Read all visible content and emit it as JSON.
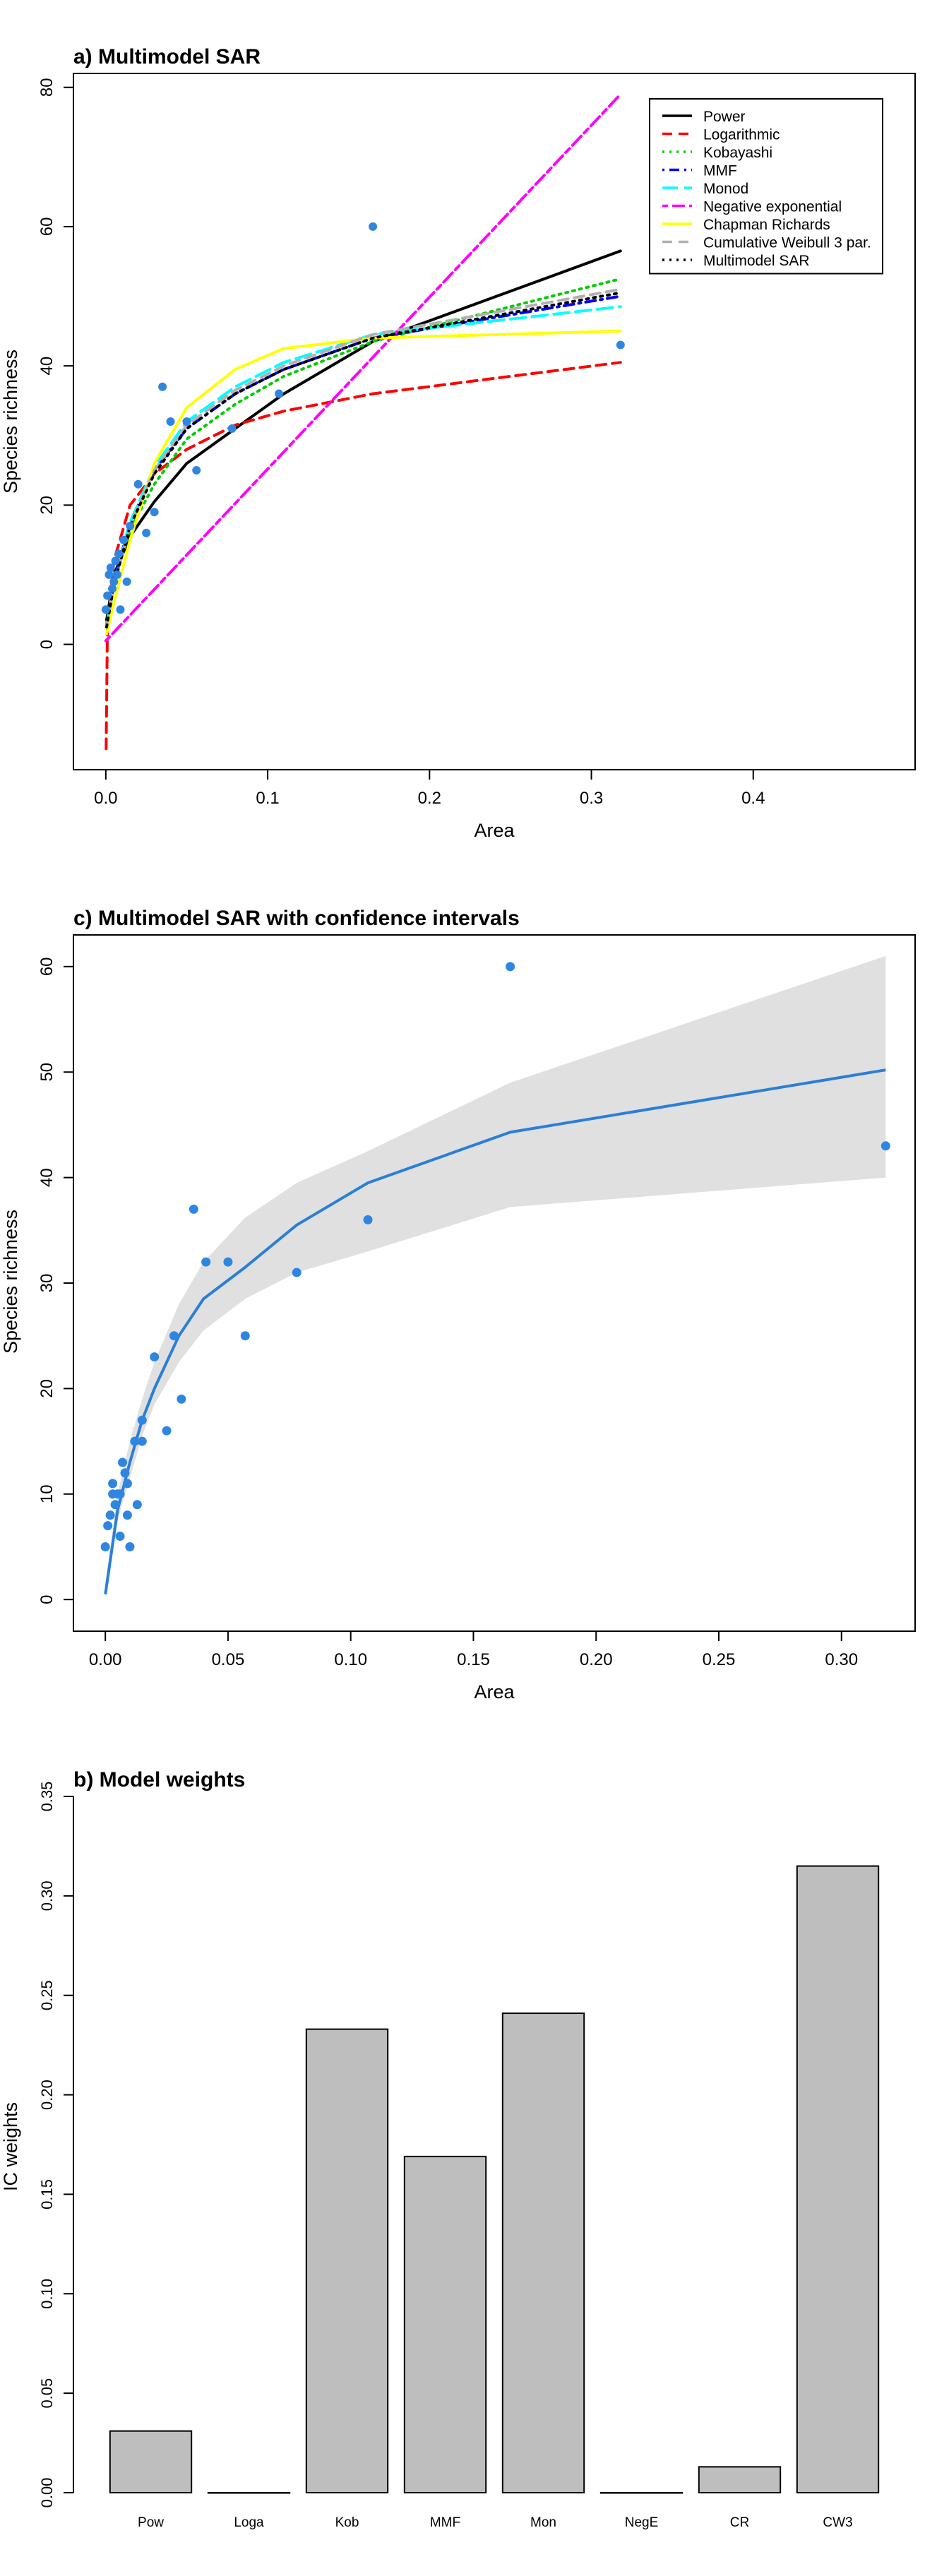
{
  "colors": {
    "points": "#2f86e0",
    "ci_fill": "#e0e0e0",
    "bar_fill": "#bebebe"
  },
  "chart_data": [
    {
      "type": "line",
      "title": "a) Multimodel SAR",
      "xlabel": "Area",
      "ylabel": "Species richness",
      "xlim": [
        -0.02,
        0.5
      ],
      "ylim": [
        -18,
        82
      ],
      "xticks": [
        0.0,
        0.1,
        0.2,
        0.3,
        0.4
      ],
      "xtick_labels": [
        "0.0",
        "0.1",
        "0.2",
        "0.3",
        "0.4"
      ],
      "yticks": [
        0,
        20,
        40,
        60,
        80
      ],
      "ytick_labels": [
        "0",
        "20",
        "40",
        "60",
        "80"
      ],
      "legend_position": "top-right",
      "observed": {
        "x": [
          0.0,
          0.001,
          0.002,
          0.003,
          0.004,
          0.005,
          0.006,
          0.007,
          0.008,
          0.009,
          0.011,
          0.013,
          0.015,
          0.02,
          0.025,
          0.03,
          0.035,
          0.04,
          0.05,
          0.056,
          0.078,
          0.107,
          0.165,
          0.318
        ],
        "y": [
          5,
          7,
          10,
          11,
          8,
          9,
          12,
          10,
          13,
          5,
          15,
          9,
          17,
          23,
          16,
          19,
          37,
          32,
          32,
          25,
          31,
          36,
          60,
          43
        ]
      },
      "series": [
        {
          "name": "Power",
          "color": "#000000",
          "dash": "solid",
          "x": [
            0.0005,
            0.005,
            0.015,
            0.03,
            0.05,
            0.08,
            0.11,
            0.165,
            0.318
          ],
          "y": [
            3.5,
            10,
            15.5,
            20.5,
            26,
            31,
            36,
            43.5,
            56.5
          ]
        },
        {
          "name": "Logarithmic",
          "color": "#ff0000",
          "dash": "dashed",
          "x": [
            0.0002,
            0.001,
            0.005,
            0.015,
            0.03,
            0.05,
            0.08,
            0.11,
            0.165,
            0.318
          ],
          "y": [
            -15,
            2,
            12,
            20,
            24.5,
            28,
            31.5,
            33.5,
            36,
            40.5
          ]
        },
        {
          "name": "Kobayashi",
          "color": "#00cd00",
          "dash": "dotted",
          "x": [
            0.0005,
            0.005,
            0.015,
            0.03,
            0.05,
            0.08,
            0.11,
            0.165,
            0.318
          ],
          "y": [
            3,
            9,
            16.5,
            23,
            29.5,
            34.5,
            38.5,
            43.5,
            52.5
          ]
        },
        {
          "name": "MMF",
          "color": "#0000ff",
          "dash": "dotdash",
          "x": [
            0.0005,
            0.005,
            0.015,
            0.03,
            0.05,
            0.08,
            0.11,
            0.165,
            0.318
          ],
          "y": [
            2.5,
            9,
            17.5,
            25,
            31,
            36,
            39.5,
            44,
            50
          ]
        },
        {
          "name": "Monod",
          "color": "#00ffff",
          "dash": "longdash",
          "x": [
            0.0005,
            0.005,
            0.015,
            0.03,
            0.05,
            0.08,
            0.11,
            0.165,
            0.318
          ],
          "y": [
            2.5,
            8.5,
            17.5,
            25.5,
            32,
            37,
            40.5,
            44.5,
            48.5
          ]
        },
        {
          "name": "Negative exponential",
          "color": "#ff00ff",
          "dash": "twodash",
          "x": [
            0.0,
            0.318
          ],
          "y": [
            0.5,
            79
          ]
        },
        {
          "name": "Chapman Richards",
          "color": "#ffff00",
          "dash": "solid",
          "x": [
            0.0005,
            0.005,
            0.015,
            0.03,
            0.05,
            0.08,
            0.11,
            0.165,
            0.318
          ],
          "y": [
            1.5,
            6,
            15,
            26,
            34,
            39.5,
            42.5,
            44,
            45
          ]
        },
        {
          "name": "Cumulative Weibull 3 par.",
          "color": "#b0b0b0",
          "dash": "dashed",
          "x": [
            0.0005,
            0.005,
            0.015,
            0.03,
            0.05,
            0.08,
            0.11,
            0.165,
            0.318
          ],
          "y": [
            2.5,
            8.5,
            17,
            25,
            31.5,
            36.5,
            40,
            44.5,
            51
          ]
        },
        {
          "name": "Multimodel SAR",
          "color": "#000000",
          "dash": "dotted",
          "x": [
            0.0005,
            0.005,
            0.015,
            0.03,
            0.05,
            0.08,
            0.11,
            0.165,
            0.318
          ],
          "y": [
            2.5,
            8.5,
            17,
            24.5,
            31,
            36,
            39.5,
            44,
            50.5
          ]
        }
      ]
    },
    {
      "type": "line",
      "title": "c) Multimodel SAR with confidence intervals",
      "xlabel": "Area",
      "ylabel": "Species richness",
      "xlim": [
        -0.013,
        0.33
      ],
      "ylim": [
        -3,
        63
      ],
      "xticks": [
        0.0,
        0.05,
        0.1,
        0.15,
        0.2,
        0.25,
        0.3
      ],
      "xtick_labels": [
        "0.00",
        "0.05",
        "0.10",
        "0.15",
        "0.20",
        "0.25",
        "0.30"
      ],
      "yticks": [
        0,
        10,
        20,
        30,
        40,
        50,
        60
      ],
      "ytick_labels": [
        "0",
        "10",
        "20",
        "30",
        "40",
        "50",
        "60"
      ],
      "observed": {
        "x": [
          0.0,
          0.001,
          0.002,
          0.003,
          0.003,
          0.004,
          0.005,
          0.006,
          0.006,
          0.007,
          0.008,
          0.009,
          0.009,
          0.01,
          0.012,
          0.013,
          0.015,
          0.015,
          0.02,
          0.025,
          0.028,
          0.031,
          0.036,
          0.041,
          0.05,
          0.057,
          0.078,
          0.107,
          0.165,
          0.318
        ],
        "y": [
          5,
          7,
          8,
          10,
          11,
          9,
          10,
          10,
          6,
          13,
          12,
          11,
          8,
          5,
          15,
          9,
          17,
          15,
          23,
          16,
          25,
          19,
          37,
          32,
          32,
          25,
          31,
          36,
          60,
          43
        ]
      },
      "series": [
        {
          "name": "",
          "color": "#2a7fd6",
          "x": [
            0.0,
            0.005,
            0.01,
            0.015,
            0.02,
            0.03,
            0.04,
            0.057,
            0.078,
            0.107,
            0.165,
            0.318
          ],
          "y": [
            0.5,
            8.5,
            13,
            17,
            20,
            25,
            28.5,
            31.5,
            35.5,
            39.5,
            44.3,
            50.2
          ]
        }
      ],
      "ci": {
        "x": [
          0.0,
          0.005,
          0.01,
          0.015,
          0.02,
          0.03,
          0.04,
          0.057,
          0.078,
          0.107,
          0.165,
          0.318
        ],
        "lower": [
          0.2,
          7.5,
          11.5,
          15.5,
          18.5,
          22.5,
          25.5,
          28.5,
          31,
          33,
          37.2,
          40
        ],
        "upper": [
          1.5,
          10,
          15,
          19,
          22.5,
          28,
          32,
          36.2,
          39.5,
          42.5,
          49,
          61
        ]
      }
    },
    {
      "type": "bar",
      "title": "b) Model weights",
      "xlabel": "",
      "ylabel": "IC weights",
      "ylim": [
        0,
        0.35
      ],
      "yticks": [
        0.0,
        0.05,
        0.1,
        0.15,
        0.2,
        0.25,
        0.3,
        0.35
      ],
      "ytick_labels": [
        "0.00",
        "0.05",
        "0.10",
        "0.15",
        "0.20",
        "0.25",
        "0.30",
        "0.35"
      ],
      "categories": [
        "Pow",
        "Loga",
        "Kob",
        "MMF",
        "Mon",
        "NegE",
        "CR",
        "CW3"
      ],
      "values": [
        0.031,
        0.0,
        0.233,
        0.169,
        0.241,
        0.0,
        0.013,
        0.315
      ]
    }
  ]
}
